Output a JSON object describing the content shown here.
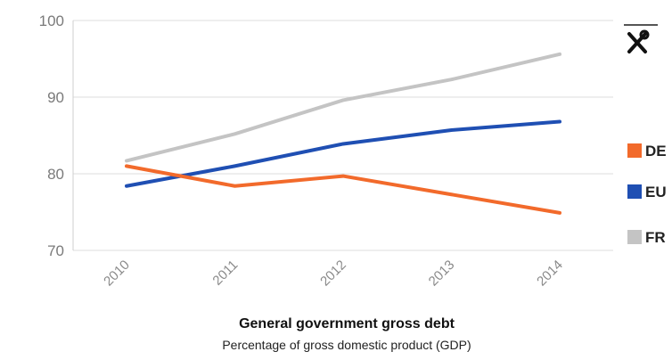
{
  "toolbar": {
    "tools_icon": "wrench-screwdriver-icon"
  },
  "colors": {
    "grid": "#dcdcdc",
    "axis": "#cfcfcf",
    "DE": "#f26a2b",
    "EU": "#1f4fb3",
    "FR": "#c4c4c4"
  },
  "chart_data": {
    "type": "line",
    "title": "General government gross debt",
    "subtitle": "Percentage of gross domestic product (GDP)",
    "xlabel": "",
    "ylabel": "",
    "x": [
      "2010",
      "2011",
      "2012",
      "2013",
      "2014"
    ],
    "ylim": [
      70,
      100
    ],
    "yticks": [
      "70",
      "80",
      "90",
      "100"
    ],
    "grid": true,
    "legend_position": "right",
    "series": [
      {
        "name": "DE",
        "values": [
          81.0,
          78.4,
          79.7,
          77.3,
          74.9
        ]
      },
      {
        "name": "EU",
        "values": [
          78.4,
          81.0,
          83.9,
          85.7,
          86.8
        ]
      },
      {
        "name": "FR",
        "values": [
          81.7,
          85.2,
          89.6,
          92.3,
          95.6
        ]
      }
    ]
  }
}
